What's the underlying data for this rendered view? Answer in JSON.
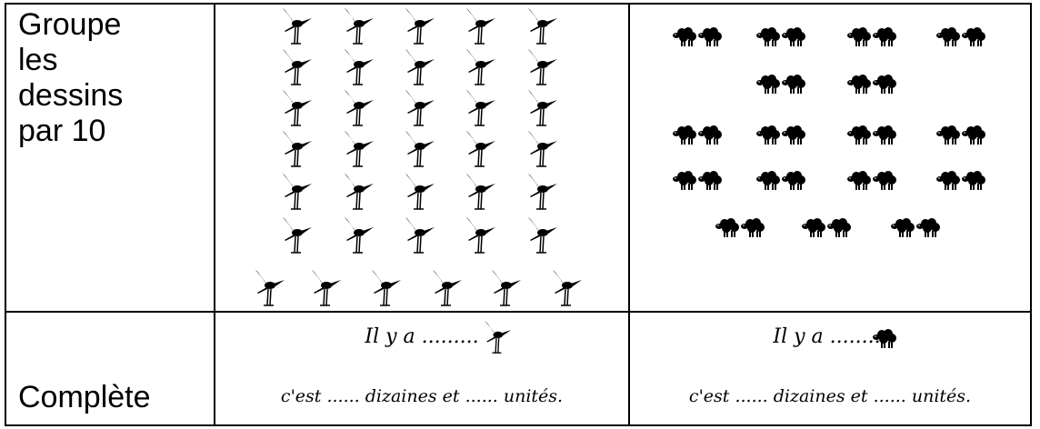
{
  "table": {
    "rows": [
      {
        "label": "Groupe les dessins par 10"
      },
      {
        "label": "Complète",
        "cells": [
          {
            "line1": "Il y a .........",
            "line2": "c'est ...... dizaines et ...... unités."
          },
          {
            "line1": "Il y a .........",
            "line2": "c'est ...... dizaines et ...... unités."
          }
        ]
      }
    ]
  }
}
